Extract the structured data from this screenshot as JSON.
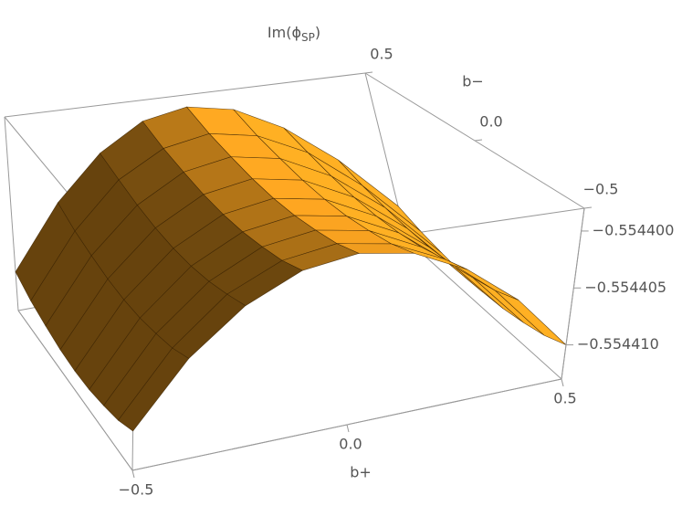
{
  "chart_data": {
    "type": "surface",
    "title": {
      "base": "Im(ϕ",
      "sub": "SP",
      "close": ")"
    },
    "x_label": "b+",
    "y_label": "b−",
    "x": [
      -0.5,
      -0.375,
      -0.25,
      -0.125,
      0,
      0.125,
      0.25,
      0.375,
      0.5
    ],
    "y": [
      -0.5,
      -0.375,
      -0.25,
      -0.125,
      0,
      0.125,
      0.25,
      0.375,
      0.5
    ],
    "z": [
      [
        -0.55441,
        -0.5544052,
        -0.5544018,
        -0.5543997,
        -0.554399,
        -0.5543997,
        -0.5544018,
        -0.5544052,
        -0.55441
      ],
      [
        -0.5544107,
        -0.5544059,
        -0.5544024,
        -0.5544004,
        -0.5543997,
        -0.5544004,
        -0.5544024,
        -0.5544059,
        -0.5544107
      ],
      [
        -0.5544111,
        -0.5544063,
        -0.5544029,
        -0.5544008,
        -0.5544001,
        -0.5544008,
        -0.5544029,
        -0.5544063,
        -0.5544111
      ],
      [
        -0.5544114,
        -0.5544066,
        -0.5544032,
        -0.5544011,
        -0.5544004,
        -0.5544011,
        -0.5544032,
        -0.5544066,
        -0.5544114
      ],
      [
        -0.5544115,
        -0.5544067,
        -0.5544033,
        -0.5544012,
        -0.5544005,
        -0.5544012,
        -0.5544033,
        -0.5544067,
        -0.5544115
      ],
      [
        -0.5544114,
        -0.5544066,
        -0.5544032,
        -0.5544011,
        -0.5544004,
        -0.5544011,
        -0.5544032,
        -0.5544066,
        -0.5544114
      ],
      [
        -0.5544111,
        -0.5544063,
        -0.5544029,
        -0.5544008,
        -0.5544001,
        -0.5544008,
        -0.5544029,
        -0.5544063,
        -0.5544111
      ],
      [
        -0.5544107,
        -0.5544059,
        -0.5544024,
        -0.5544004,
        -0.5543997,
        -0.5544004,
        -0.5544024,
        -0.5544059,
        -0.5544107
      ],
      [
        -0.55441,
        -0.5544052,
        -0.5544018,
        -0.5543997,
        -0.554399,
        -0.5543997,
        -0.5544018,
        -0.5544052,
        -0.55441
      ]
    ],
    "xlim": [
      -0.5,
      0.5
    ],
    "ylim": [
      -0.5,
      0.5
    ],
    "zlim": [
      -0.554413,
      -0.554398
    ],
    "xticks": [
      {
        "value": -0.5,
        "label": "−0.5"
      },
      {
        "value": 0,
        "label": "0.0"
      },
      0.5
    ],
    "yticks": [
      0.5,
      {
        "value": 0,
        "label": "0.0"
      },
      {
        "value": -0.5,
        "label": "−0.5"
      }
    ],
    "zticks": [
      {
        "value": -0.5544,
        "label": "−0.554400"
      },
      {
        "value": -0.554405,
        "label": "−0.554405"
      },
      {
        "value": -0.55441,
        "label": "−0.554410"
      }
    ],
    "color": "#f5a020"
  }
}
